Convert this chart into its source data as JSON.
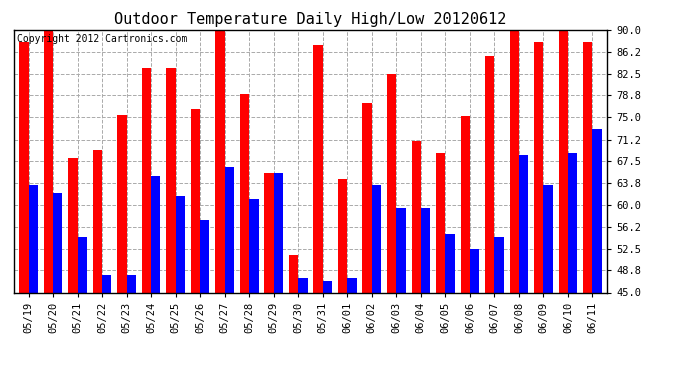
{
  "title": "Outdoor Temperature Daily High/Low 20120612",
  "copyright": "Copyright 2012 Cartronics.com",
  "dates": [
    "05/19",
    "05/20",
    "05/21",
    "05/22",
    "05/23",
    "05/24",
    "05/25",
    "05/26",
    "05/27",
    "05/28",
    "05/29",
    "05/30",
    "05/31",
    "06/01",
    "06/02",
    "06/03",
    "06/04",
    "06/05",
    "06/06",
    "06/07",
    "06/08",
    "06/09",
    "06/10",
    "06/11"
  ],
  "highs": [
    88.0,
    90.0,
    68.0,
    69.5,
    75.5,
    83.5,
    83.5,
    76.5,
    90.0,
    79.0,
    65.5,
    51.5,
    87.5,
    64.5,
    77.5,
    82.5,
    71.0,
    69.0,
    75.2,
    85.5,
    90.0,
    88.0,
    90.0,
    88.0
  ],
  "lows": [
    63.5,
    62.0,
    54.5,
    48.0,
    48.0,
    65.0,
    61.5,
    57.5,
    66.5,
    61.0,
    65.5,
    47.5,
    47.0,
    47.5,
    63.5,
    59.5,
    59.5,
    55.0,
    52.5,
    54.5,
    68.5,
    63.5,
    69.0,
    73.0
  ],
  "high_color": "#ff0000",
  "low_color": "#0000ff",
  "bg_color": "#ffffff",
  "grid_color": "#aaaaaa",
  "ymin": 45.0,
  "ymax": 90.0,
  "yticks": [
    45.0,
    48.8,
    52.5,
    56.2,
    60.0,
    63.8,
    67.5,
    71.2,
    75.0,
    78.8,
    82.5,
    86.2,
    90.0
  ],
  "ytick_labels": [
    "45.0",
    "48.8",
    "52.5",
    "56.2",
    "60.0",
    "63.8",
    "67.5",
    "71.2",
    "75.0",
    "78.8",
    "82.5",
    "86.2",
    "90.0"
  ],
  "bar_width": 0.38,
  "title_fontsize": 11,
  "tick_fontsize": 7.5,
  "copyright_fontsize": 7
}
